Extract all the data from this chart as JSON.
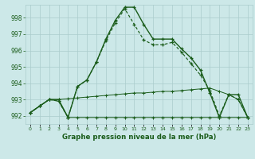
{
  "title": "Graphe pression niveau de la mer (hPa)",
  "xlabel_ticks": [
    "0",
    "1",
    "2",
    "3",
    "4",
    "5",
    "6",
    "7",
    "8",
    "9",
    "10",
    "11",
    "12",
    "13",
    "14",
    "15",
    "16",
    "17",
    "18",
    "19",
    "20",
    "21",
    "22",
    "23"
  ],
  "ylim": [
    991.5,
    998.8
  ],
  "yticks": [
    992,
    993,
    994,
    995,
    996,
    997,
    998
  ],
  "background_color": "#cce8e8",
  "grid_color": "#aacccc",
  "line_color": "#1a5c1a",
  "line1": [
    992.2,
    992.6,
    993.0,
    992.9,
    991.9,
    991.9,
    991.9,
    991.9,
    991.9,
    991.9,
    991.9,
    991.9,
    991.9,
    991.9,
    991.9,
    991.9,
    991.9,
    991.9,
    991.9,
    991.9,
    991.9,
    991.9,
    991.9,
    991.9
  ],
  "line2": [
    992.2,
    992.6,
    993.0,
    993.0,
    993.05,
    993.1,
    993.15,
    993.2,
    993.25,
    993.3,
    993.35,
    993.4,
    993.4,
    993.45,
    993.5,
    993.5,
    993.55,
    993.6,
    993.65,
    993.7,
    993.5,
    993.3,
    993.0,
    991.9
  ],
  "line3": [
    992.2,
    992.6,
    993.0,
    992.9,
    991.9,
    993.8,
    994.2,
    995.3,
    996.6,
    997.7,
    998.55,
    997.6,
    996.65,
    996.35,
    996.35,
    996.5,
    995.9,
    995.2,
    994.5,
    993.55,
    992.0,
    993.3,
    993.0,
    991.9
  ],
  "line4": [
    992.2,
    992.6,
    993.0,
    993.0,
    991.9,
    993.8,
    994.2,
    995.3,
    996.7,
    997.85,
    998.65,
    998.65,
    997.6,
    996.7,
    996.7,
    996.7,
    996.1,
    995.55,
    994.8,
    993.4,
    991.9,
    993.3,
    993.3,
    991.9
  ]
}
